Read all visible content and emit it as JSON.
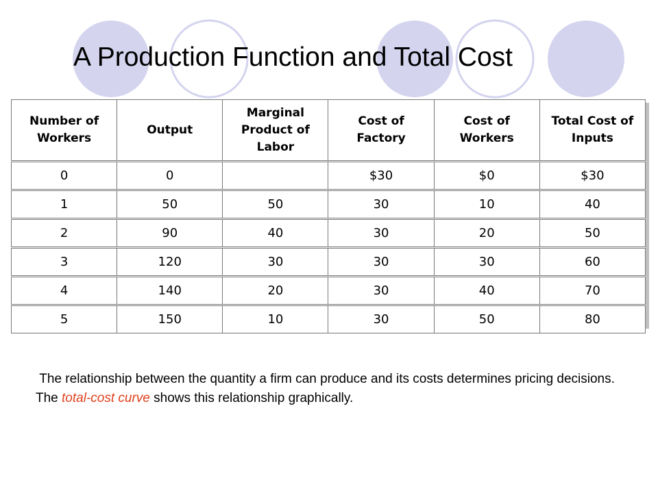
{
  "header": {
    "title": "A Production Function and Total Cost"
  },
  "table": {
    "columns": [
      [
        "Number of",
        "Workers"
      ],
      [
        "Output"
      ],
      [
        "Marginal",
        "Product of",
        "Labor"
      ],
      [
        "Cost of",
        "Factory"
      ],
      [
        "Cost of",
        "Workers"
      ],
      [
        "Total Cost of",
        "Inputs"
      ]
    ],
    "rows": [
      [
        "0",
        "0",
        null,
        "$30",
        "$0",
        "$30"
      ],
      [
        "1",
        "50",
        "50",
        "30",
        "10",
        "40"
      ],
      [
        "2",
        "90",
        "40",
        "30",
        "20",
        "50"
      ],
      [
        "3",
        "120",
        "30",
        "30",
        "30",
        "60"
      ],
      [
        "4",
        "140",
        "20",
        "30",
        "40",
        "70"
      ],
      [
        "5",
        "150",
        "10",
        "30",
        "50",
        "80"
      ]
    ]
  },
  "body": {
    "line1": "The relationship between the quantity a firm can produce and its costs determines pricing decisions.",
    "line2": {
      "before": "The ",
      "emphasis": "total-cost curve",
      "after": " shows this relationship graphically."
    }
  }
}
